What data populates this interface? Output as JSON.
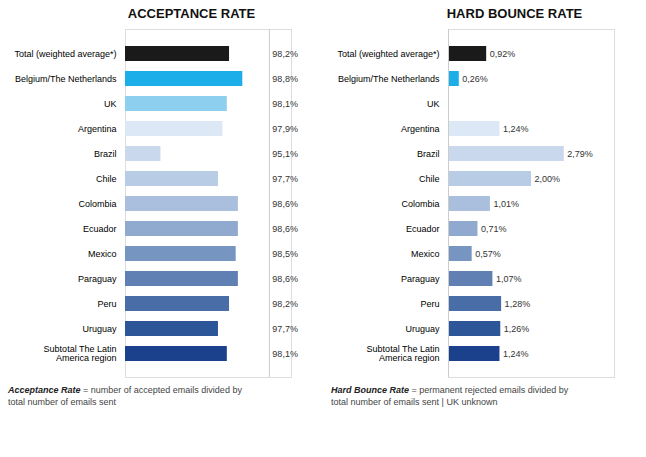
{
  "chart_data": [
    {
      "type": "bar",
      "orientation": "horizontal",
      "title": "ACCEPTANCE RATE",
      "categories": [
        "Total (weighted average*)",
        "Belgium/The Netherlands",
        "UK",
        "Argentina",
        "Brazil",
        "Chile",
        "Colombia",
        "Ecuador",
        "Mexico",
        "Paraguay",
        "Peru",
        "Uruguay",
        "Subtotal The Latin\nAmerica region"
      ],
      "values": [
        98.2,
        98.8,
        98.1,
        97.9,
        95.1,
        97.7,
        98.6,
        98.6,
        98.5,
        98.6,
        98.2,
        97.7,
        98.1
      ],
      "value_labels": [
        "98,2%",
        "98,8%",
        "98,1%",
        "97,9%",
        "95,1%",
        "97,7%",
        "98,6%",
        "98,6%",
        "98,5%",
        "98,6%",
        "98,2%",
        "97,7%",
        "98,1%"
      ],
      "colors": [
        "#1a1a1a",
        "#1baee8",
        "#8dcfee",
        "#dce8f5",
        "#cad8ed",
        "#b9cce5",
        "#aabedd",
        "#8faace",
        "#7695c0",
        "#6080b3",
        "#496da6",
        "#2d5699",
        "#1b408c"
      ],
      "xlim": [
        93.5,
        101.0
      ],
      "baseline": 100.0,
      "data_labels": true,
      "tick_labels": "y",
      "annotations": [
        "Acceptance Rate",
        " = number of accepted emails divided by\ntotal number of emails sent"
      ]
    },
    {
      "type": "bar",
      "orientation": "horizontal",
      "title": "HARD BOUNCE RATE",
      "categories": [
        "Total (weighted average*)",
        "Belgium/The Netherlands",
        "UK",
        "Argentina",
        "Brazil",
        "Chile",
        "Colombia",
        "Ecuador",
        "Mexico",
        "Paraguay",
        "Peru",
        "Uruguay",
        "Subtotal The Latin\nAmerica region"
      ],
      "values": [
        0.92,
        0.26,
        0.0,
        1.24,
        2.79,
        2.0,
        1.01,
        0.71,
        0.57,
        1.07,
        1.28,
        1.26,
        1.24
      ],
      "value_labels": [
        "0,92%",
        "0,26%",
        null,
        "1,24%",
        "2,79%",
        "2,00%",
        "1,01%",
        "0,71%",
        "0,57%",
        "1,07%",
        "1,28%",
        "1,26%",
        "1,24%"
      ],
      "colors": [
        "#1a1a1a",
        "#1baee8",
        "#ffffff",
        "#dce8f5",
        "#cad8ed",
        "#b9cce5",
        "#aabedd",
        "#8faace",
        "#7695c0",
        "#6080b3",
        "#496da6",
        "#2d5699",
        "#1b408c"
      ],
      "xlim": [
        0,
        4.0
      ],
      "baseline": 0,
      "data_labels": true,
      "tick_labels": "y",
      "annotations": [
        "Hard Bounce Rate",
        " = permanent rejected emails divided by\ntotal number of emails sent | UK unknown"
      ]
    }
  ]
}
